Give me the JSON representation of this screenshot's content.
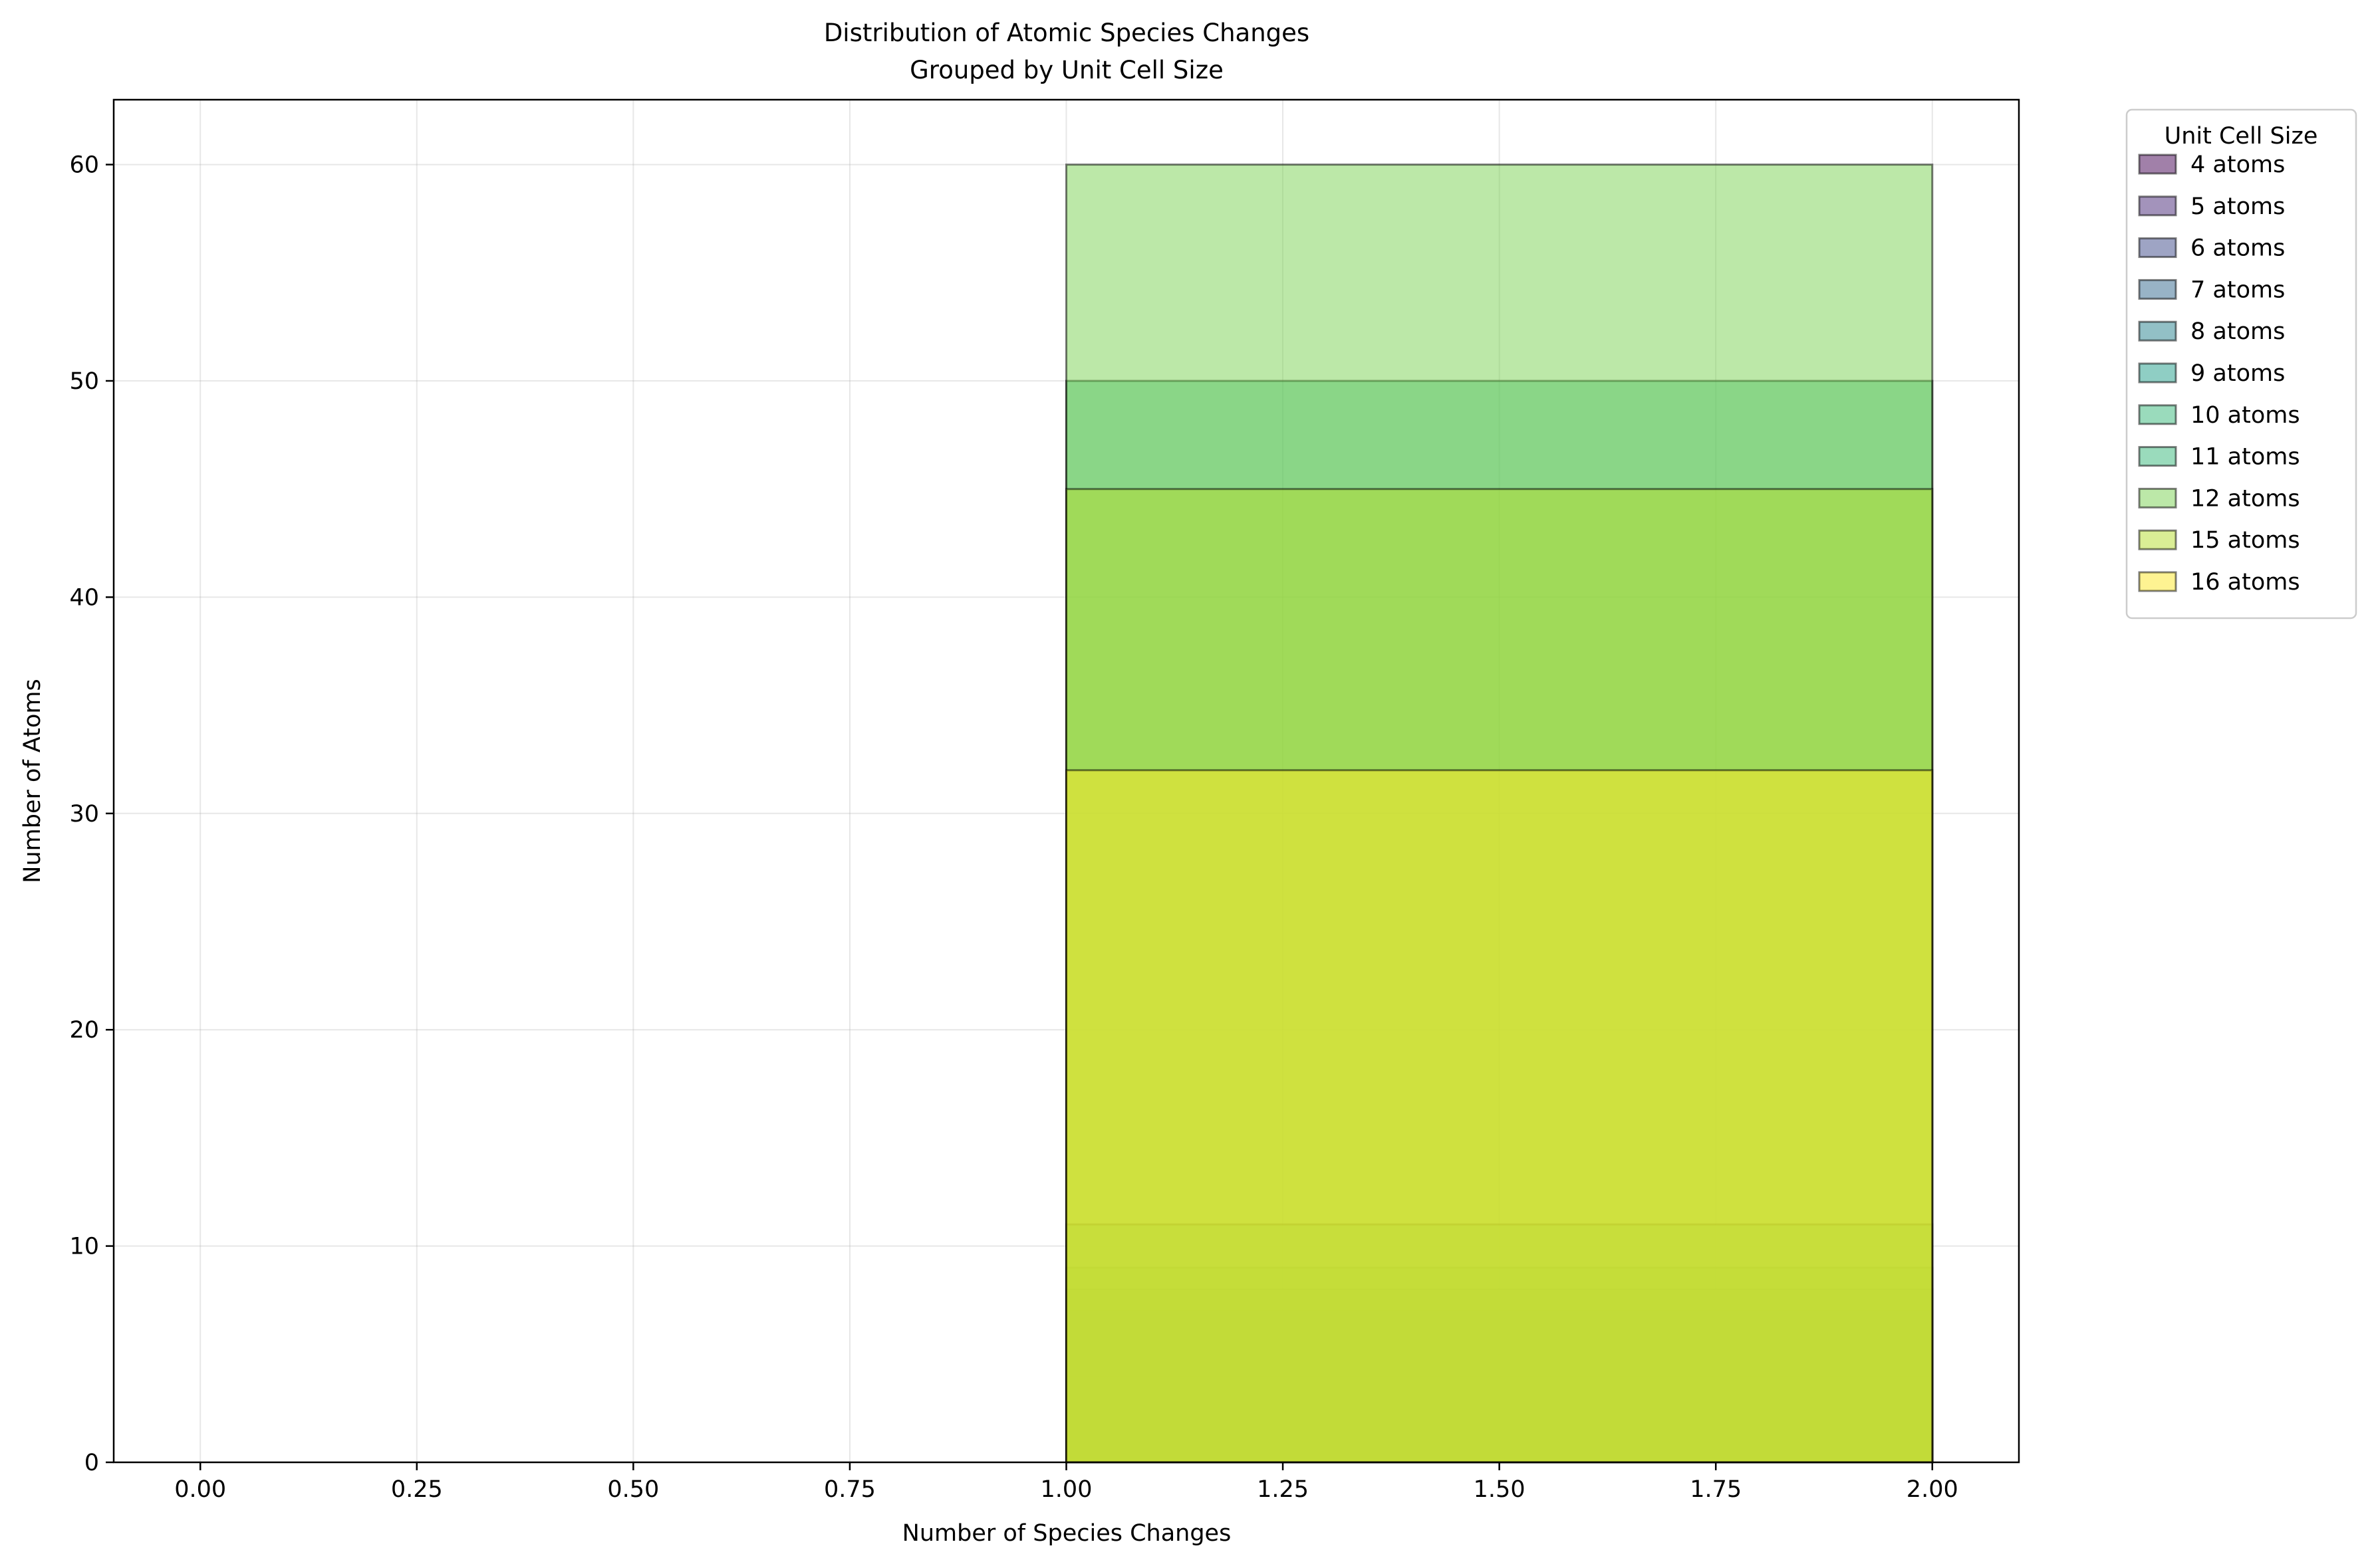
{
  "chart_data": {
    "type": "histogram",
    "title": "Distribution of Atomic Species Changes",
    "subtitle": "Grouped by Unit Cell Size",
    "xlabel": "Number of Species Changes",
    "ylabel": "Number of Atoms",
    "xlim": [
      -0.1,
      2.1
    ],
    "ylim": [
      0,
      63
    ],
    "grid": true,
    "x_ticks": [
      "0.00",
      "0.25",
      "0.50",
      "0.75",
      "1.00",
      "1.25",
      "1.50",
      "1.75",
      "2.00"
    ],
    "y_ticks": [
      "0",
      "10",
      "20",
      "30",
      "40",
      "50",
      "60"
    ],
    "bin_edges": [
      0,
      1,
      2
    ],
    "legend": {
      "title": "Unit Cell Size",
      "placement": "outside-top-right"
    },
    "series": [
      {
        "name": "4 atoms",
        "color": "#440154",
        "values": [
          0,
          4
        ]
      },
      {
        "name": "5 atoms",
        "color": "#482878",
        "values": [
          0,
          5
        ]
      },
      {
        "name": "6 atoms",
        "color": "#3e4989",
        "values": [
          0,
          6
        ]
      },
      {
        "name": "7 atoms",
        "color": "#31688e",
        "values": [
          0,
          7
        ]
      },
      {
        "name": "8 atoms",
        "color": "#26828e",
        "values": [
          0,
          8
        ]
      },
      {
        "name": "9 atoms",
        "color": "#1f9e89",
        "values": [
          0,
          9
        ]
      },
      {
        "name": "10 atoms",
        "color": "#35b779",
        "values": [
          0,
          50
        ]
      },
      {
        "name": "11 atoms",
        "color": "#35b779",
        "values": [
          0,
          11
        ]
      },
      {
        "name": "12 atoms",
        "color": "#7ad151",
        "values": [
          0,
          60
        ]
      },
      {
        "name": "15 atoms",
        "color": "#b5de2b",
        "values": [
          0,
          45
        ]
      },
      {
        "name": "16 atoms",
        "color": "#fde725",
        "values": [
          0,
          32
        ]
      }
    ]
  }
}
